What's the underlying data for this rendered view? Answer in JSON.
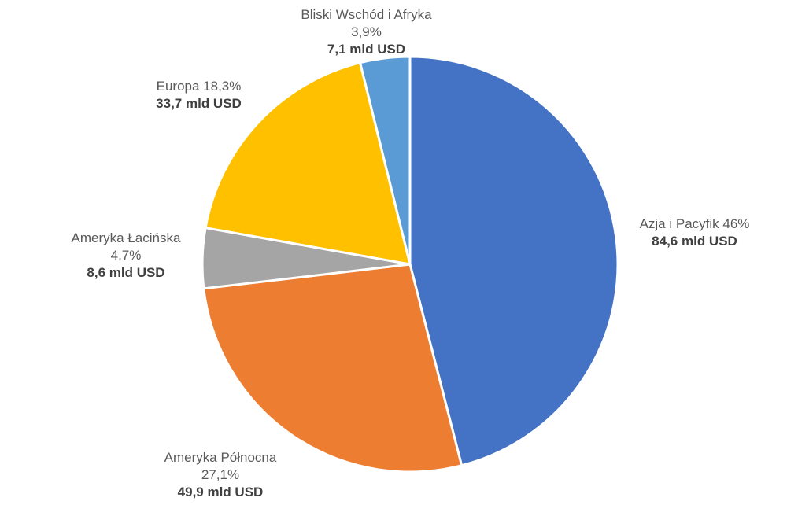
{
  "chart_data": {
    "type": "pie",
    "slices": [
      {
        "name": "Azja i Pacyfik",
        "percent_label": "46%",
        "value_label": "84,6 mld USD",
        "value": 84.6,
        "percent": 46.0,
        "color": "#4472C4"
      },
      {
        "name": "Ameryka Północna",
        "percent_label": "27,1%",
        "value_label": "49,9 mld USD",
        "value": 49.9,
        "percent": 27.1,
        "color": "#ED7D31"
      },
      {
        "name": "Ameryka Łacińska",
        "percent_label": "4,7%",
        "value_label": "8,6 mld USD",
        "value": 8.6,
        "percent": 4.7,
        "color": "#A5A5A5"
      },
      {
        "name": "Europa",
        "percent_label": "18,3%",
        "value_label": "33,7 mld USD",
        "value": 33.7,
        "percent": 18.3,
        "color": "#FFC000"
      },
      {
        "name": "Bliski Wschód i Afryka",
        "percent_label": "3,9%",
        "value_label": "7,1 mld USD",
        "value": 7.1,
        "percent": 3.9,
        "color": "#5B9BD5"
      }
    ]
  }
}
